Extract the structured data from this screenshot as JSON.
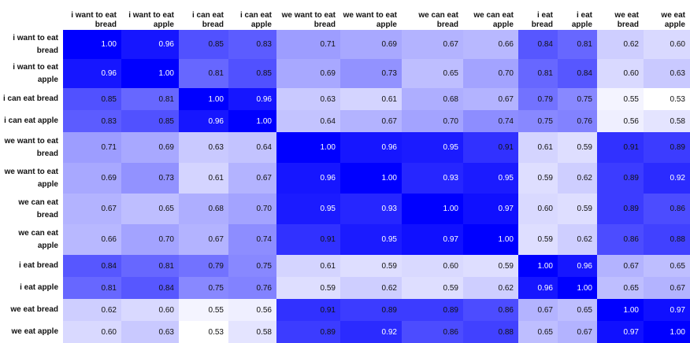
{
  "chart_data": {
    "type": "heatmap",
    "columns": [
      "i want to eat bread",
      "i want to eat apple",
      "i can eat bread",
      "i can eat apple",
      "we want to eat bread",
      "we want to eat apple",
      "we can eat bread",
      "we can eat apple",
      "i eat bread",
      "i eat apple",
      "we eat bread",
      "we eat apple"
    ],
    "rows": [
      "i want to eat bread",
      "i want to eat apple",
      "i can eat bread",
      "i can eat apple",
      "we want to eat bread",
      "we want to eat apple",
      "we can eat bread",
      "we can eat apple",
      "i eat bread",
      "i eat apple",
      "we eat bread",
      "we eat apple"
    ],
    "values": [
      [
        1.0,
        0.96,
        0.85,
        0.83,
        0.71,
        0.69,
        0.67,
        0.66,
        0.84,
        0.81,
        0.62,
        0.6
      ],
      [
        0.96,
        1.0,
        0.81,
        0.85,
        0.69,
        0.73,
        0.65,
        0.7,
        0.81,
        0.84,
        0.6,
        0.63
      ],
      [
        0.85,
        0.81,
        1.0,
        0.96,
        0.63,
        0.61,
        0.68,
        0.67,
        0.79,
        0.75,
        0.55,
        0.53
      ],
      [
        0.83,
        0.85,
        0.96,
        1.0,
        0.64,
        0.67,
        0.7,
        0.74,
        0.75,
        0.76,
        0.56,
        0.58
      ],
      [
        0.71,
        0.69,
        0.63,
        0.64,
        1.0,
        0.96,
        0.95,
        0.91,
        0.61,
        0.59,
        0.91,
        0.89
      ],
      [
        0.69,
        0.73,
        0.61,
        0.67,
        0.96,
        1.0,
        0.93,
        0.95,
        0.59,
        0.62,
        0.89,
        0.92
      ],
      [
        0.67,
        0.65,
        0.68,
        0.7,
        0.95,
        0.93,
        1.0,
        0.97,
        0.6,
        0.59,
        0.89,
        0.86
      ],
      [
        0.66,
        0.7,
        0.67,
        0.74,
        0.91,
        0.95,
        0.97,
        1.0,
        0.59,
        0.62,
        0.86,
        0.88
      ],
      [
        0.84,
        0.81,
        0.79,
        0.75,
        0.61,
        0.59,
        0.6,
        0.59,
        1.0,
        0.96,
        0.67,
        0.65
      ],
      [
        0.81,
        0.84,
        0.75,
        0.76,
        0.59,
        0.62,
        0.59,
        0.62,
        0.96,
        1.0,
        0.65,
        0.67
      ],
      [
        0.62,
        0.6,
        0.55,
        0.56,
        0.91,
        0.89,
        0.89,
        0.86,
        0.67,
        0.65,
        1.0,
        0.97
      ],
      [
        0.6,
        0.63,
        0.53,
        0.58,
        0.89,
        0.92,
        0.86,
        0.88,
        0.65,
        0.67,
        0.97,
        1.0
      ]
    ],
    "value_range": [
      0.53,
      1.0
    ],
    "color_low": "#ffffff",
    "color_high": "#0000ff"
  }
}
